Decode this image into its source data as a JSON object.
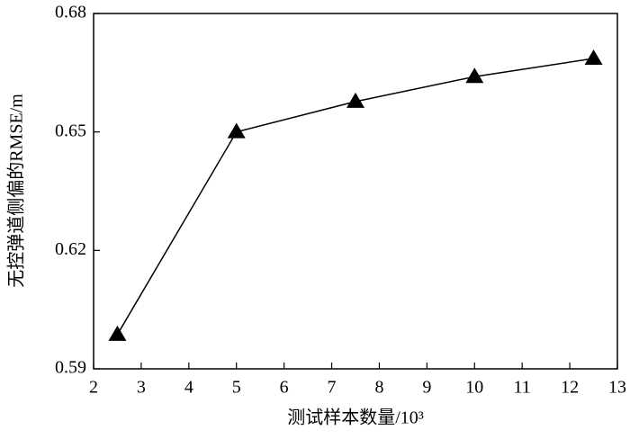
{
  "chart_data": {
    "type": "line",
    "x_label": "测试样本数量/10³",
    "y_label": "无控弹道侧偏的RMSE/m",
    "x": [
      2.5,
      5,
      7.5,
      10,
      12.5
    ],
    "values": [
      0.5987,
      0.65,
      0.6577,
      0.664,
      0.6686
    ],
    "color": "#000000",
    "marker": "triangle",
    "xlim": [
      2,
      13
    ],
    "xticks": [
      2,
      3,
      4,
      5,
      6,
      7,
      8,
      9,
      10,
      11,
      12,
      13
    ],
    "ylim": [
      0.59,
      0.68
    ],
    "yticks": [
      0.59,
      0.62,
      0.65,
      0.68
    ]
  }
}
